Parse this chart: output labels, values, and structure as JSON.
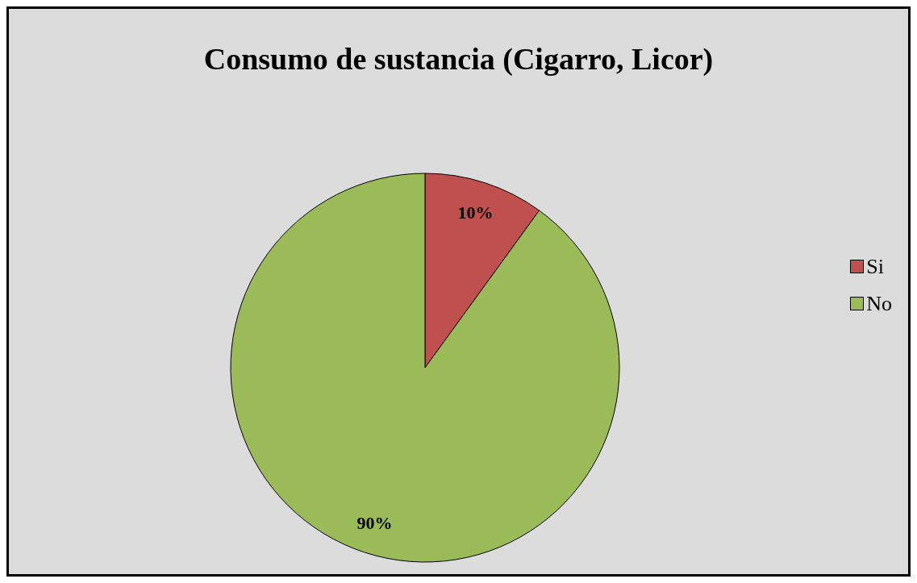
{
  "chart_data": {
    "type": "pie",
    "title": "Consumo de sustancia (Cigarro, Licor)",
    "categories": [
      "Si",
      "No"
    ],
    "values": [
      10,
      90
    ],
    "colors": [
      "#c0504d",
      "#9bbb59"
    ],
    "value_labels": [
      "10%",
      "90%"
    ],
    "legend": "right"
  }
}
